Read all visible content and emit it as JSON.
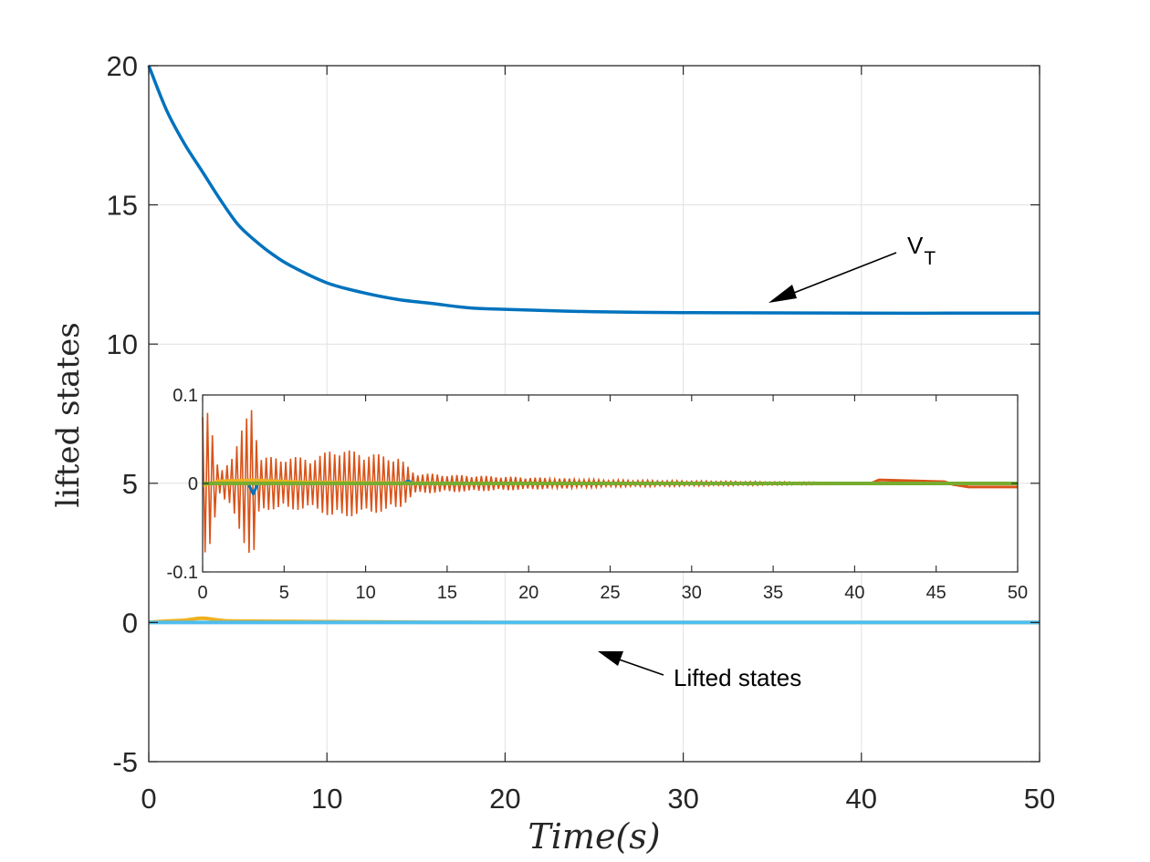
{
  "chart_data": [
    {
      "type": "line",
      "xlabel": "Time(s)",
      "ylabel": "lifted states",
      "xlim": [
        0,
        50
      ],
      "ylim": [
        -5,
        20
      ],
      "xticks": [
        "0",
        "10",
        "20",
        "30",
        "40",
        "50"
      ],
      "yticks": [
        "-5",
        "0",
        "5",
        "10",
        "15",
        "20"
      ],
      "grid": true,
      "series": [
        {
          "x": [
            0,
            1,
            2,
            3,
            4,
            5,
            6,
            7,
            8,
            10,
            12,
            14,
            16,
            18,
            20,
            25,
            30,
            35,
            40,
            45,
            50
          ],
          "values": [
            20,
            18.4,
            17.2,
            16.2,
            15.2,
            14.3,
            13.7,
            13.2,
            12.8,
            12.2,
            11.85,
            11.6,
            11.45,
            11.3,
            11.25,
            11.16,
            11.13,
            11.12,
            11.11,
            11.11,
            11.11
          ],
          "color": "#0072BD"
        },
        {
          "x": [
            0,
            1,
            2,
            3,
            4,
            5,
            10,
            15,
            20,
            30,
            40,
            50
          ],
          "values": [
            0,
            0.05,
            0.08,
            0.15,
            0.08,
            0.05,
            0.03,
            0.01,
            0.0,
            0.0,
            0.0,
            0.0
          ],
          "color": "#EDB120"
        },
        {
          "x": [
            0,
            10,
            20,
            30,
            40,
            50
          ],
          "values": [
            0,
            0,
            0,
            0,
            0,
            0
          ],
          "color": "#4DBEEE"
        }
      ],
      "annotations": [
        {
          "text": "V",
          "subscript": "T",
          "points_to": [
            35,
            11.1
          ]
        },
        {
          "text": "Lifted states",
          "points_to": [
            25,
            -1.8
          ]
        }
      ]
    },
    {
      "type": "line",
      "xlim": [
        0,
        50
      ],
      "ylim": [
        -0.1,
        0.1
      ],
      "xticks": [
        "0",
        "5",
        "10",
        "15",
        "20",
        "25",
        "30",
        "35",
        "40",
        "45",
        "50"
      ],
      "yticks": [
        "-0.1",
        "0",
        "0.1"
      ],
      "series": [
        {
          "color": "#D95319",
          "amplitude_envelope": {
            "x": [
              0,
              0.3,
              1,
              2,
              2.8,
              3.1,
              3.5,
              5,
              7,
              8,
              10,
              12,
              13,
              15,
              20,
              25,
              30,
              35,
              40,
              50
            ],
            "values": [
              0.1,
              0.09,
              0.01,
              0.04,
              0.08,
              0.1,
              0.03,
              0.03,
              0.03,
              0.04,
              0.035,
              0.03,
              0.012,
              0.01,
              0.007,
              0.004,
              0.003,
              0.002,
              0.001,
              0.0005
            ]
          }
        },
        {
          "color": "#D95319",
          "x": [
            40,
            41,
            41.5,
            45.5,
            46,
            47,
            50
          ],
          "values": [
            0,
            0,
            0.004,
            0.002,
            -0.001,
            -0.004,
            -0.004
          ]
        },
        {
          "color": "#0072BD",
          "x": [
            0,
            2.8,
            3.1,
            3.4,
            12.3,
            12.6,
            13,
            50
          ],
          "values": [
            0,
            0,
            -0.012,
            0,
            0,
            0.003,
            0,
            0
          ]
        },
        {
          "color": "#EDB120",
          "x": [
            0,
            1,
            3,
            6,
            10,
            20,
            30,
            50
          ],
          "values": [
            -0.003,
            0.003,
            0.004,
            0.002,
            0.001,
            0.0,
            0.0,
            0.0
          ]
        },
        {
          "color": "#77AC30",
          "x": [
            0,
            10,
            20,
            30,
            40,
            50
          ],
          "values": [
            0.0,
            0.0,
            0.0,
            0.0,
            0.0,
            0.0
          ]
        }
      ]
    }
  ],
  "colors": {
    "axes": "#262626",
    "grid": "#e1e1e1",
    "arrow": "#000000"
  }
}
